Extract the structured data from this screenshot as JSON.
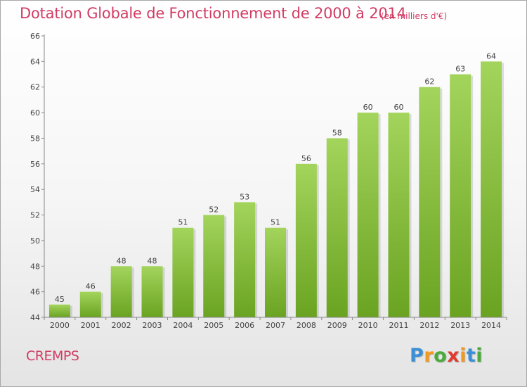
{
  "chart_data": {
    "type": "bar",
    "title": "Dotation Globale de Fonctionnement de 2000 à 2014",
    "subtitle": "(en milliers d'€)",
    "categories": [
      "2000",
      "2001",
      "2002",
      "2003",
      "2004",
      "2005",
      "2006",
      "2007",
      "2008",
      "2009",
      "2010",
      "2011",
      "2012",
      "2013",
      "2014"
    ],
    "values": [
      45,
      46,
      48,
      48,
      51,
      52,
      53,
      51,
      56,
      58,
      60,
      60,
      62,
      63,
      64
    ],
    "xlabel": "",
    "ylabel": "",
    "ylim": [
      44,
      66
    ],
    "yticks": [
      "44",
      "46",
      "48",
      "50",
      "52",
      "54",
      "56",
      "58",
      "60",
      "62",
      "64",
      "66"
    ],
    "grid": false,
    "bar_color": "#8cc63f",
    "bar_color_dark": "#6aa321"
  },
  "footer": {
    "commune": "CREMPS",
    "brand": "Proxiti",
    "brand_letters": [
      {
        "ch": "P",
        "color": "#3b8fd6"
      },
      {
        "ch": "r",
        "color": "#f39a1e"
      },
      {
        "ch": "o",
        "color": "#4aaa3a"
      },
      {
        "ch": "x",
        "color": "#e23a2e"
      },
      {
        "ch": "i",
        "color": "#f39a1e"
      },
      {
        "ch": "t",
        "color": "#3b8fd6"
      },
      {
        "ch": "i",
        "color": "#4aaa3a"
      }
    ]
  }
}
